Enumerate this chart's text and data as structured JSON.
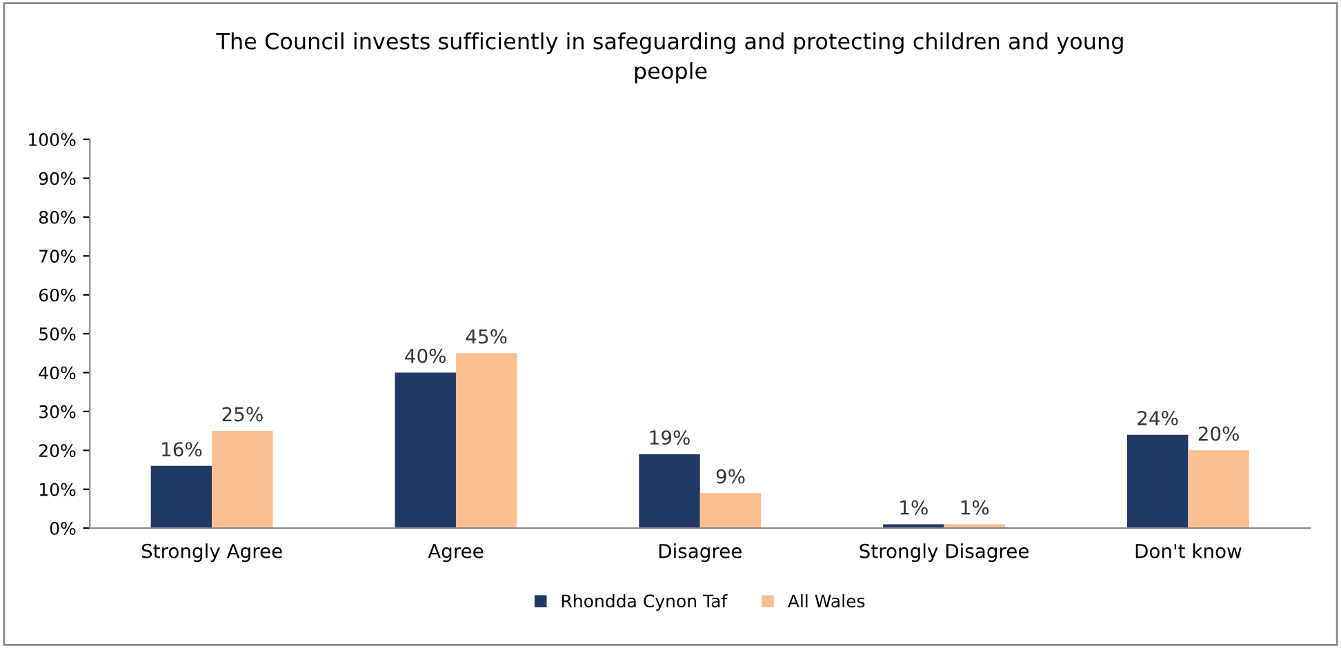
{
  "chart_data": {
    "type": "bar",
    "title": "The Council invests sufficiently in safeguarding and protecting children and young\npeople",
    "categories": [
      "Strongly Agree",
      "Agree",
      "Disagree",
      "Strongly Disagree",
      "Don't know"
    ],
    "series": [
      {
        "name": "Rhondda Cynon Taf",
        "color": "#1f3864",
        "values": [
          16,
          40,
          19,
          1,
          24
        ],
        "value_labels": [
          "16%",
          "40%",
          "19%",
          "1%",
          "24%"
        ]
      },
      {
        "name": "All Wales",
        "color": "#fac090",
        "values": [
          25,
          45,
          9,
          1,
          20
        ],
        "value_labels": [
          "25%",
          "45%",
          "9%",
          "1%",
          "20%"
        ]
      }
    ],
    "ylim": [
      0,
      100
    ],
    "yticks": [
      {
        "value": 0,
        "label": "0%"
      },
      {
        "value": 10,
        "label": "10%"
      },
      {
        "value": 20,
        "label": "20%"
      },
      {
        "value": 30,
        "label": "30%"
      },
      {
        "value": 40,
        "label": "40%"
      },
      {
        "value": 50,
        "label": "50%"
      },
      {
        "value": 60,
        "label": "60%"
      },
      {
        "value": 70,
        "label": "70%"
      },
      {
        "value": 80,
        "label": "80%"
      },
      {
        "value": 90,
        "label": "90%"
      },
      {
        "value": 100,
        "label": "100%"
      }
    ],
    "legend": "bottom",
    "grid": false
  }
}
